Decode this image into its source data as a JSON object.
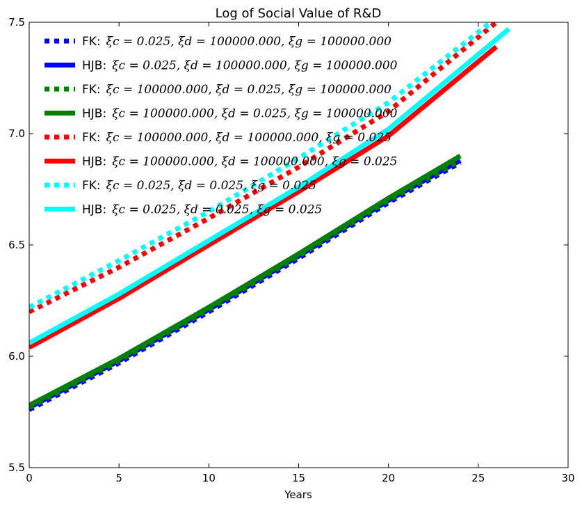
{
  "chart_data": {
    "type": "line",
    "title": "Log of Social Value of R&D",
    "xlabel": "Years",
    "ylabel": "",
    "xlim": [
      0,
      30
    ],
    "ylim": [
      5.5,
      7.5
    ],
    "xticks": [
      "0",
      "5",
      "10",
      "15",
      "20",
      "25",
      "30"
    ],
    "yticks": [
      "5.5",
      "6.0",
      "6.5",
      "7.0",
      "7.5"
    ],
    "grid": false,
    "legend_position": "top-left",
    "series": [
      {
        "name": "FK: ξc=0.025, ξd=100000.000, ξg=100000.000",
        "legend_prefix": "FK:",
        "legend_math": "ξc = 0.025, ξd = 100000.000, ξg = 100000.000",
        "color": "#0000ff",
        "style": "dotted",
        "x": [
          0,
          5,
          10,
          15,
          20,
          24
        ],
        "y": [
          5.76,
          5.97,
          6.2,
          6.44,
          6.69,
          6.87
        ]
      },
      {
        "name": "HJB: ξc=0.025, ξd=100000.000, ξg=100000.000",
        "legend_prefix": "HJB:",
        "legend_math": "ξc = 0.025, ξd = 100000.000, ξg = 100000.000",
        "color": "#0000ff",
        "style": "solid",
        "x": [
          0,
          5,
          10,
          15,
          20,
          24
        ],
        "y": [
          5.77,
          5.98,
          6.21,
          6.45,
          6.7,
          6.88
        ]
      },
      {
        "name": "FK: ξc=100000.000, ξd=0.025, ξg=100000.000",
        "legend_prefix": "FK:",
        "legend_math": "ξc = 100000.000, ξd = 0.025, ξg = 100000.000",
        "color": "#008000",
        "style": "dotted",
        "x": [
          0,
          5,
          10,
          15,
          20,
          24
        ],
        "y": [
          5.77,
          5.98,
          6.21,
          6.45,
          6.7,
          6.88
        ]
      },
      {
        "name": "HJB: ξc=100000.000, ξd=0.025, ξg=100000.000",
        "legend_prefix": "HJB:",
        "legend_math": "ξc = 100000.000, ξd = 0.025, ξg = 100000.000",
        "color": "#008000",
        "style": "solid",
        "x": [
          0,
          5,
          10,
          15,
          20,
          24
        ],
        "y": [
          5.78,
          5.99,
          6.22,
          6.46,
          6.71,
          6.9
        ]
      },
      {
        "name": "FK: ξc=100000.000, ξd=100000.000, ξg=0.025",
        "legend_prefix": "FK:",
        "legend_math": "ξc = 100000.000, ξd = 100000.000, ξg = 0.025",
        "color": "#ff0000",
        "style": "dotted",
        "x": [
          0,
          5,
          10,
          15,
          20,
          26
        ],
        "y": [
          6.2,
          6.4,
          6.62,
          6.85,
          7.1,
          7.5
        ]
      },
      {
        "name": "HJB: ξc=100000.000, ξd=100000.000, ξg=0.025",
        "legend_prefix": "HJB:",
        "legend_math": "ξc = 100000.000, ξd = 100000.000, ξg = 0.025",
        "color": "#ff0000",
        "style": "solid",
        "x": [
          0,
          5,
          10,
          15,
          20,
          26
        ],
        "y": [
          6.04,
          6.26,
          6.5,
          6.74,
          6.99,
          7.39
        ]
      },
      {
        "name": "FK: ξc=0.025, ξd=0.025, ξg=0.025",
        "legend_prefix": "FK:",
        "legend_math": "ξc = 0.025, ξd = 0.025, ξg = 0.025",
        "color": "#00ffff",
        "style": "dotted",
        "x": [
          0,
          5,
          10,
          15,
          20,
          25.7
        ],
        "y": [
          6.22,
          6.43,
          6.65,
          6.89,
          7.14,
          7.5
        ]
      },
      {
        "name": "HJB: ξc=0.025, ξd=0.025, ξg=0.025",
        "legend_prefix": "HJB:",
        "legend_math": "ξc = 0.025, ξd = 0.025, ξg = 0.025",
        "color": "#00ffff",
        "style": "solid",
        "x": [
          0,
          5,
          10,
          15,
          20,
          26.7
        ],
        "y": [
          6.06,
          6.28,
          6.52,
          6.76,
          7.02,
          7.47
        ]
      }
    ]
  }
}
